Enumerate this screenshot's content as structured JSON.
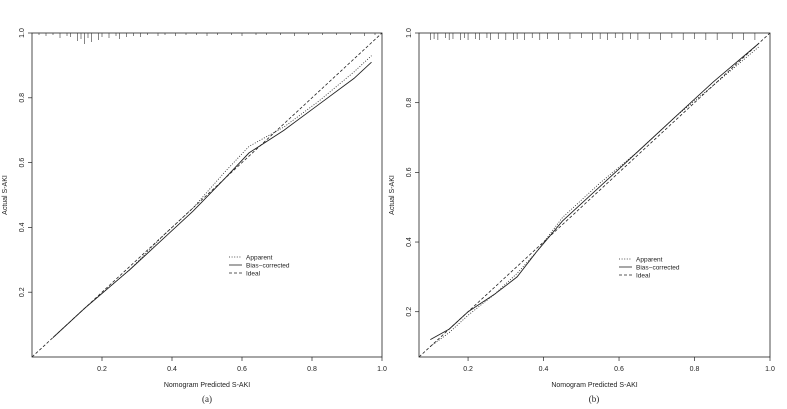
{
  "chart_data": [
    {
      "type": "line",
      "panel_label": "(a)",
      "xlabel": "Nomogram Predicted S-AKI",
      "ylabel": "Actual S-AKI",
      "xlim": [
        0.0,
        1.0
      ],
      "ylim": [
        0.0,
        1.0
      ],
      "xticks": [
        0.2,
        0.4,
        0.6,
        0.8,
        1.0
      ],
      "yticks": [
        0.2,
        0.4,
        0.6,
        0.8,
        1.0
      ],
      "xtick_labels": [
        "0.2",
        "0.4",
        "0.6",
        "0.8",
        "1.0"
      ],
      "ytick_labels": [
        "0.2",
        "0.4",
        "0.6",
        "0.8",
        "1.0"
      ],
      "grid": false,
      "legend_position": "lower-right",
      "legend": [
        "Apparent",
        "Bias−corrected",
        "Ideal"
      ],
      "series": [
        {
          "name": "Apparent",
          "style": "dotted",
          "x": [
            0.06,
            0.15,
            0.28,
            0.38,
            0.46,
            0.55,
            0.62,
            0.72,
            0.82,
            0.92,
            0.97
          ],
          "y": [
            0.06,
            0.15,
            0.27,
            0.38,
            0.46,
            0.57,
            0.65,
            0.71,
            0.79,
            0.88,
            0.93
          ]
        },
        {
          "name": "Bias−corrected",
          "style": "solid",
          "x": [
            0.06,
            0.15,
            0.28,
            0.38,
            0.46,
            0.55,
            0.62,
            0.72,
            0.82,
            0.92,
            0.97
          ],
          "y": [
            0.06,
            0.15,
            0.27,
            0.37,
            0.45,
            0.55,
            0.63,
            0.7,
            0.78,
            0.86,
            0.91
          ]
        },
        {
          "name": "Ideal",
          "style": "dashed",
          "x": [
            0.0,
            1.0
          ],
          "y": [
            0.0,
            1.0
          ]
        }
      ],
      "rug_x": [
        0.02,
        0.04,
        0.06,
        0.08,
        0.1,
        0.11,
        0.13,
        0.14,
        0.15,
        0.16,
        0.17,
        0.19,
        0.2,
        0.22,
        0.24,
        0.25,
        0.27,
        0.29,
        0.31,
        0.33,
        0.36,
        0.38,
        0.41,
        0.44,
        0.47,
        0.5,
        0.53,
        0.57,
        0.6,
        0.64,
        0.67,
        0.71,
        0.75,
        0.79,
        0.83,
        0.87,
        0.91,
        0.95,
        0.98
      ],
      "rug_len": [
        2,
        3,
        2,
        5,
        3,
        4,
        8,
        6,
        11,
        5,
        9,
        7,
        4,
        5,
        3,
        6,
        4,
        3,
        4,
        2,
        3,
        2,
        3,
        2,
        2,
        3,
        2,
        2,
        3,
        2,
        2,
        2,
        3,
        2,
        2,
        2,
        2,
        3,
        2
      ]
    },
    {
      "type": "line",
      "panel_label": "(b)",
      "xlabel": "Nomogram Predicted S-AKI",
      "ylabel": "Actual S-AKI",
      "xlim": [
        0.07,
        1.0
      ],
      "ylim": [
        0.07,
        1.0
      ],
      "xticks": [
        0.2,
        0.4,
        0.6,
        0.8,
        1.0
      ],
      "yticks": [
        0.2,
        0.4,
        0.6,
        0.8,
        1.0
      ],
      "xtick_labels": [
        "0.2",
        "0.4",
        "0.6",
        "0.8",
        "1.0"
      ],
      "ytick_labels": [
        "0.2",
        "0.4",
        "0.6",
        "0.8",
        "1.0"
      ],
      "grid": false,
      "legend_position": "lower-right",
      "legend": [
        "Apparent",
        "Bias−corrected",
        "Ideal"
      ],
      "series": [
        {
          "name": "Apparent",
          "style": "dotted",
          "x": [
            0.1,
            0.15,
            0.2,
            0.27,
            0.33,
            0.38,
            0.45,
            0.55,
            0.65,
            0.75,
            0.85,
            0.97
          ],
          "y": [
            0.1,
            0.14,
            0.19,
            0.25,
            0.31,
            0.37,
            0.47,
            0.57,
            0.66,
            0.76,
            0.85,
            0.96
          ]
        },
        {
          "name": "Bias−corrected",
          "style": "solid",
          "x": [
            0.1,
            0.15,
            0.2,
            0.27,
            0.33,
            0.38,
            0.45,
            0.55,
            0.65,
            0.75,
            0.85,
            0.97
          ],
          "y": [
            0.12,
            0.15,
            0.2,
            0.25,
            0.3,
            0.37,
            0.46,
            0.56,
            0.66,
            0.76,
            0.86,
            0.97
          ]
        },
        {
          "name": "Ideal",
          "style": "dashed",
          "x": [
            0.07,
            1.0
          ],
          "y": [
            0.07,
            1.0
          ]
        }
      ],
      "rug_x": [
        0.1,
        0.11,
        0.12,
        0.14,
        0.15,
        0.16,
        0.18,
        0.19,
        0.2,
        0.22,
        0.23,
        0.25,
        0.26,
        0.28,
        0.3,
        0.32,
        0.33,
        0.35,
        0.37,
        0.39,
        0.41,
        0.44,
        0.47,
        0.5,
        0.53,
        0.55,
        0.57,
        0.59,
        0.61,
        0.63,
        0.65,
        0.68,
        0.71,
        0.74,
        0.77,
        0.8,
        0.83,
        0.86,
        0.9,
        0.93,
        0.96
      ],
      "rug_len": [
        7,
        6,
        7,
        5,
        7,
        6,
        7,
        5,
        7,
        6,
        7,
        5,
        7,
        6,
        7,
        7,
        6,
        7,
        5,
        7,
        6,
        7,
        6,
        5,
        7,
        6,
        7,
        5,
        7,
        6,
        7,
        6,
        7,
        5,
        7,
        6,
        7,
        7,
        6,
        7,
        7
      ]
    }
  ]
}
